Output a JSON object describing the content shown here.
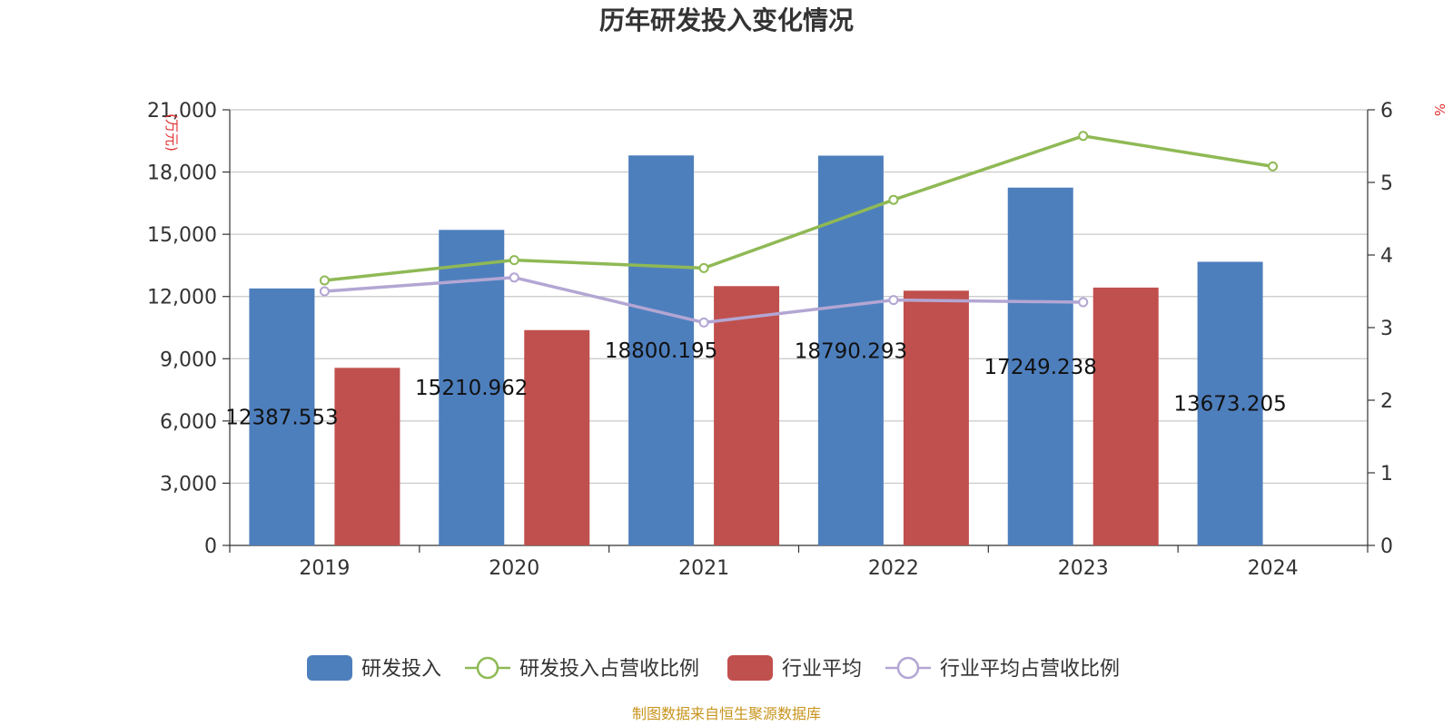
{
  "chart_data": {
    "type": "bar",
    "title": "历年研发投入变化情况",
    "categories": [
      "2019",
      "2020",
      "2021",
      "2022",
      "2023",
      "2024"
    ],
    "left_axis": {
      "unit": "(万元)",
      "range": [
        0,
        21000
      ],
      "ticks": [
        0,
        3000,
        6000,
        9000,
        12000,
        15000,
        18000,
        21000
      ],
      "tick_labels": [
        "0",
        "3,000",
        "6,000",
        "9,000",
        "12,000",
        "15,000",
        "18,000",
        "21,000"
      ]
    },
    "right_axis": {
      "unit": "%",
      "range": [
        0,
        6
      ],
      "ticks": [
        0,
        1,
        2,
        3,
        4,
        5,
        6
      ],
      "tick_labels": [
        "0",
        "1",
        "2",
        "3",
        "4",
        "5",
        "6"
      ]
    },
    "series": [
      {
        "name": "研发投入",
        "kind": "bar",
        "axis": "left",
        "color": "#4e7fbd",
        "values": [
          12387.553,
          15210.962,
          18800.195,
          18790.293,
          17249.238,
          13673.205
        ],
        "labels": [
          "12387.553",
          "15210.962",
          "18800.195",
          "18790.293",
          "17249.238",
          "13673.205"
        ]
      },
      {
        "name": "研发投入占营收比例",
        "kind": "line",
        "axis": "right",
        "color": "#8fb955",
        "values": [
          3.65,
          3.93,
          3.82,
          4.76,
          5.64,
          5.22
        ]
      },
      {
        "name": "行业平均",
        "kind": "bar",
        "axis": "left",
        "color": "#c0504d",
        "values": [
          8560,
          10380,
          12500,
          12280,
          12430,
          null
        ]
      },
      {
        "name": "行业平均占营收比例",
        "kind": "line",
        "axis": "right",
        "color": "#b3a6d3",
        "values": [
          3.5,
          3.69,
          3.07,
          3.38,
          3.35,
          null
        ]
      }
    ],
    "legend_position": "bottom"
  },
  "footer": {
    "source": "制图数据来自恒生聚源数据库"
  }
}
